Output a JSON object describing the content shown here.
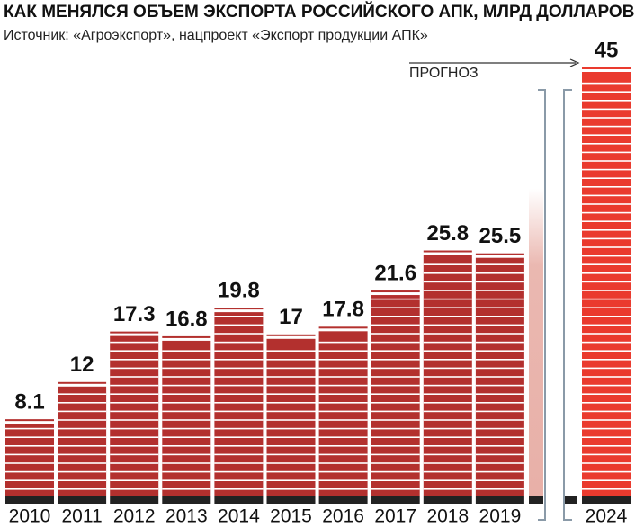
{
  "chart_data": {
    "type": "bar",
    "title": "КАК МЕНЯЛСЯ ОБЪЕМ ЭКСПОРТА РОССИЙСКОГО АПК, МЛРД ДОЛЛАРОВ",
    "subtitle": "Источник: «Агроэкспорт», нацпроект «Экспорт продукции АПК»",
    "annotation": "ПРОГНОЗ",
    "categories": [
      "2010",
      "2011",
      "2012",
      "2013",
      "2014",
      "2015",
      "2016",
      "2017",
      "2018",
      "2019",
      "2024"
    ],
    "values": [
      8.1,
      12,
      17.3,
      16.8,
      19.8,
      17,
      17.8,
      21.6,
      25.8,
      25.5,
      45
    ],
    "colors": [
      "#b3302e",
      "#b3302e",
      "#b3302e",
      "#b3302e",
      "#b3302e",
      "#b3302e",
      "#b3302e",
      "#b3302e",
      "#b3302e",
      "#b3302e",
      "#ea3a2e"
    ]
  }
}
